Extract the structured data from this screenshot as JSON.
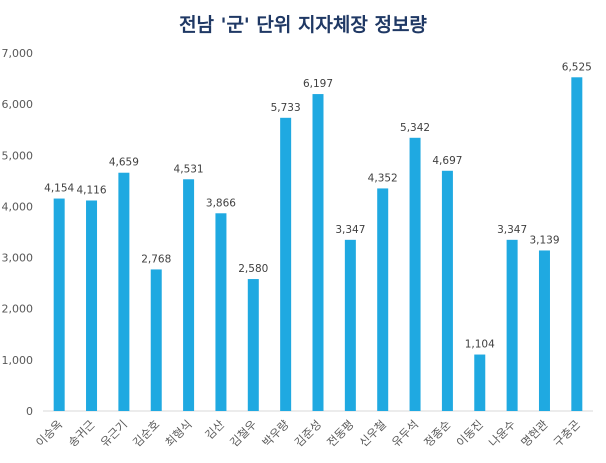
{
  "chart_data": {
    "type": "bar",
    "title": "전남 '군' 단위 지자체장 정보량",
    "xlabel": "",
    "ylabel": "",
    "ylim": [
      0,
      7000
    ],
    "yticks": [
      "0",
      "1,000",
      "2,000",
      "3,000",
      "4,000",
      "5,000",
      "6,000",
      "7,000"
    ],
    "ytick_values": [
      0,
      1000,
      2000,
      3000,
      4000,
      5000,
      6000,
      7000
    ],
    "categories": [
      "이승옥",
      "송귀근",
      "유근기",
      "김순호",
      "최형식",
      "김산",
      "김철우",
      "박우량",
      "김준성",
      "전동평",
      "신우철",
      "유두석",
      "정종순",
      "이동진",
      "나윤수",
      "명현관",
      "구충곤"
    ],
    "values": [
      4154,
      4116,
      4659,
      2768,
      4531,
      3866,
      2580,
      5733,
      6197,
      3347,
      4352,
      5342,
      4697,
      1104,
      3347,
      3139,
      6525
    ],
    "labels": [
      "4,154",
      "4,116",
      "4,659",
      "2,768",
      "4,531",
      "3,866",
      "2,580",
      "5,733",
      "6,197",
      "3,347",
      "4,352",
      "5,342",
      "4,697",
      "1,104",
      "3,347",
      "3,139",
      "6,525"
    ],
    "bar_color": "#1fa9e1",
    "grid": false
  }
}
